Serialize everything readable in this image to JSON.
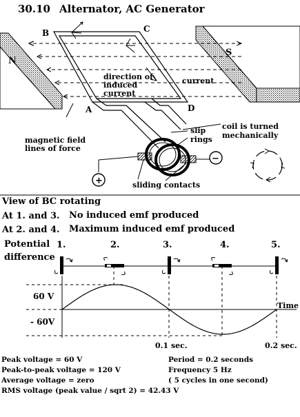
{
  "header": {
    "number": "30.10",
    "title": "Alternator, AC Generator"
  },
  "diagram": {
    "magnet_left": "N",
    "magnet_right": "S",
    "corner_a": "A",
    "corner_b": "B",
    "corner_c": "C",
    "corner_d": "D",
    "direction_line1": "direction of",
    "direction_line2": "induced",
    "direction_line3": "current",
    "current": "current",
    "field_line1": "magnetic field",
    "field_line2": "lines of force",
    "slip_line1": "slip",
    "slip_line2": "rings",
    "coil_line1": "coil is turned",
    "coil_line2": "mechanically",
    "sliding_contacts": "sliding contacts",
    "plus": "+",
    "minus": "−"
  },
  "rotation": {
    "title": "View of BC rotating",
    "row1_prefix": "At 1. and 3.",
    "row1_text": "No induced emf produced",
    "row2_prefix": "At 2. and 4.",
    "row2_text": "Maximum induced emf produced"
  },
  "graph": {
    "ylabel_line1": "Potential",
    "ylabel_line2": "difference",
    "positions": [
      "1.",
      "2.",
      "3.",
      "4.",
      "5."
    ],
    "y_pos_label": "60 V",
    "y_neg_label": "- 60V",
    "time_label": "Time",
    "tick1": "0.1 sec.",
    "tick2": "0.2 sec."
  },
  "chart_data": {
    "type": "line",
    "title": "",
    "xlabel": "Time",
    "ylabel": "Potential difference",
    "x": [
      0.0,
      0.05,
      0.1,
      0.15,
      0.2
    ],
    "values": [
      0,
      60,
      0,
      -60,
      0
    ],
    "ylim": [
      -60,
      60
    ],
    "xticks": [
      "0.1 sec.",
      "0.2 sec."
    ]
  },
  "notes": {
    "peak": "Peak voltage = 60 V",
    "peak_to_peak": "Peak-to-peak voltage = 120 V",
    "average": "Average voltage = zero",
    "rms": "RMS voltage (peak value / sqrt 2) = 42.43 V",
    "period": "Period = 0.2 seconds",
    "frequency": "Frequency 5 Hz",
    "cycles": "( 5 cycles in one second)"
  }
}
